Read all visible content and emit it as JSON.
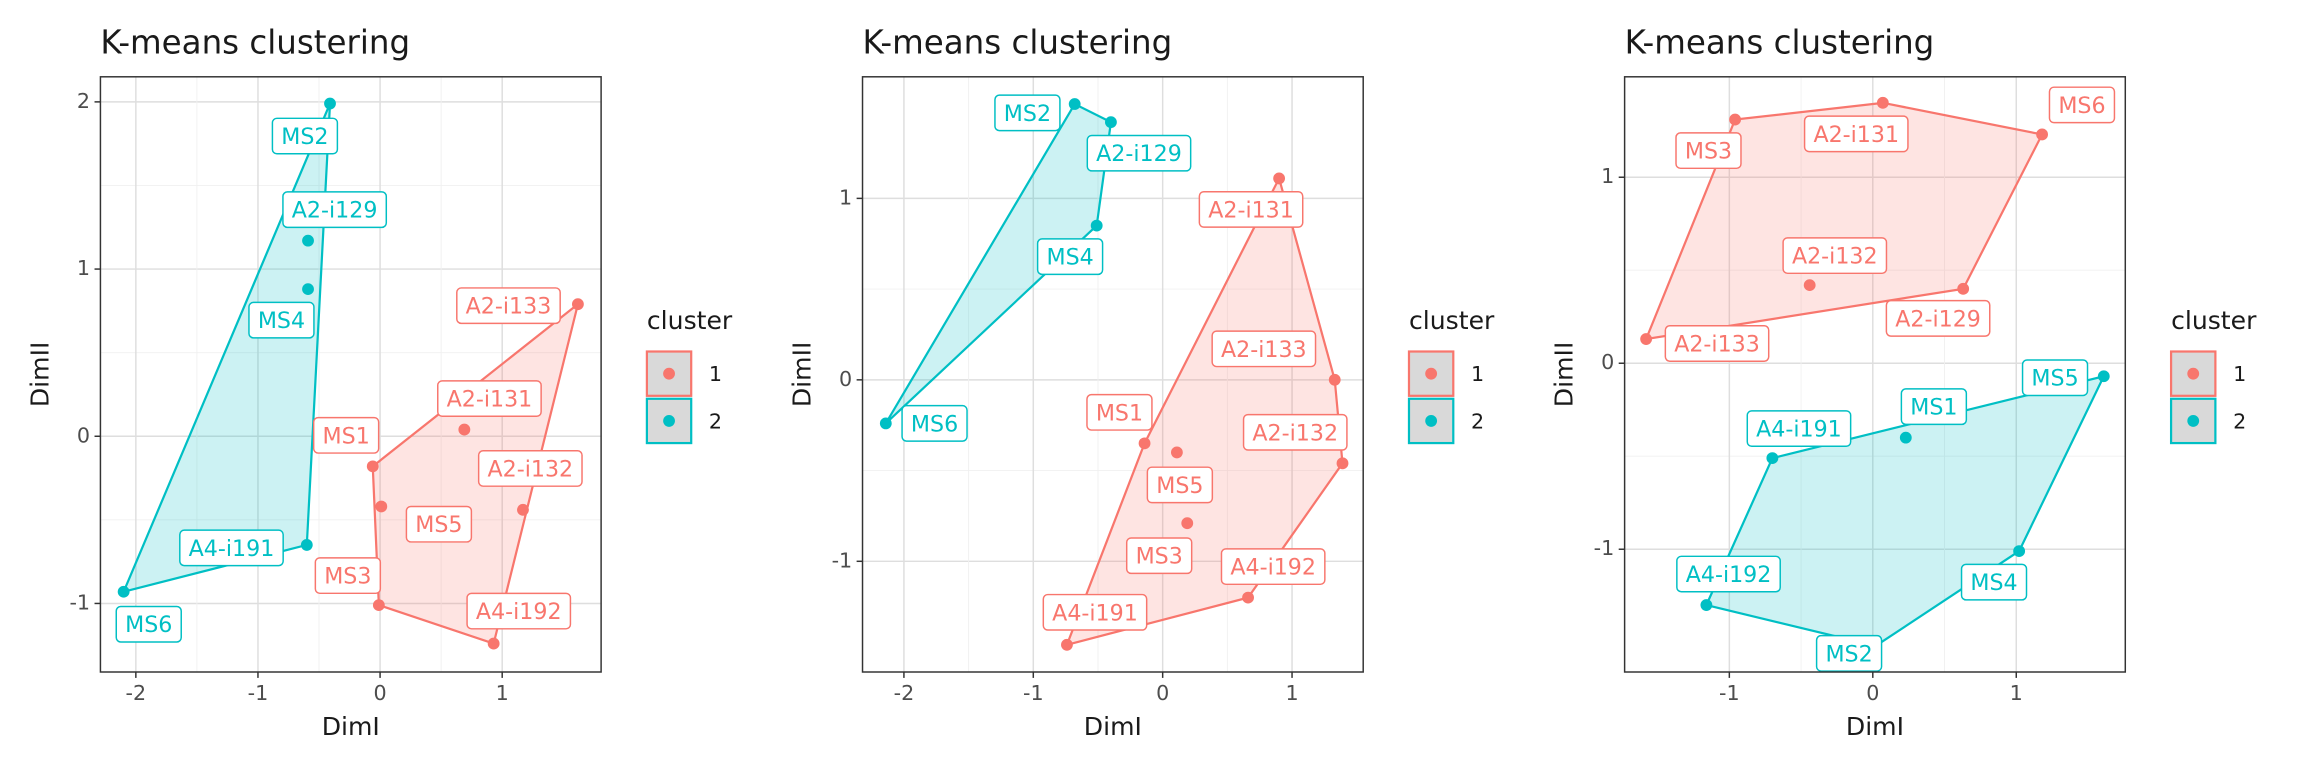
{
  "chart_data": [
    {
      "type": "scatter",
      "title": "K-means clustering",
      "xlabel": "DimI",
      "ylabel": "DimII",
      "legend_title": "cluster",
      "grid": true,
      "xlim": [
        -2.29,
        1.81
      ],
      "ylim": [
        -1.41,
        2.15
      ],
      "xticks": [
        -2,
        -1,
        0,
        1
      ],
      "yticks": [
        -1,
        0,
        1,
        2
      ],
      "series": [
        {
          "name": "1",
          "color": "#F8766D",
          "labels": [
            "A2-i133",
            "A2-i131",
            "MS1",
            "MS5",
            "A2-i132",
            "MS3",
            "A4-i192"
          ],
          "x": [
            1.62,
            0.69,
            -0.06,
            0.01,
            1.17,
            -0.01,
            0.93
          ],
          "values": [
            0.79,
            0.04,
            -0.18,
            -0.42,
            -0.44,
            -1.01,
            -1.24
          ]
        },
        {
          "name": "2",
          "color": "#00BFC4",
          "labels": [
            "MS2",
            "A2-i129",
            "MS4",
            "A4-i191",
            "MS6"
          ],
          "x": [
            -0.41,
            -0.59,
            -0.59,
            -0.6,
            -2.1
          ],
          "values": [
            1.99,
            1.17,
            0.88,
            -0.65,
            -0.93
          ]
        }
      ]
    },
    {
      "type": "scatter",
      "title": "K-means clustering",
      "xlabel": "DimI",
      "ylabel": "DimII",
      "legend_title": "cluster",
      "grid": true,
      "xlim": [
        -2.32,
        1.55
      ],
      "ylim": [
        -1.61,
        1.67
      ],
      "xticks": [
        -2,
        -1,
        0,
        1
      ],
      "yticks": [
        -1,
        0,
        1
      ],
      "series": [
        {
          "name": "1",
          "color": "#F8766D",
          "labels": [
            "A2-i131",
            "A2-i133",
            "A2-i132",
            "A4-i192",
            "A4-i191",
            "MS1",
            "MS5",
            "MS3"
          ],
          "x": [
            0.9,
            1.33,
            1.39,
            0.66,
            -0.74,
            -0.14,
            0.11,
            0.19
          ],
          "values": [
            1.11,
            0.0,
            -0.46,
            -1.2,
            -1.46,
            -0.35,
            -0.4,
            -0.79
          ]
        },
        {
          "name": "2",
          "color": "#00BFC4",
          "labels": [
            "MS2",
            "A2-i129",
            "MS4",
            "MS6"
          ],
          "x": [
            -0.68,
            -0.4,
            -0.51,
            -2.14
          ],
          "values": [
            1.52,
            1.42,
            0.85,
            -0.24
          ]
        }
      ]
    },
    {
      "type": "scatter",
      "title": "K-means clustering",
      "xlabel": "DimI",
      "ylabel": "DimII",
      "legend_title": "cluster",
      "grid": true,
      "xlim": [
        -1.73,
        1.76
      ],
      "ylim": [
        -1.66,
        1.54
      ],
      "xticks": [
        -1,
        0,
        1
      ],
      "yticks": [
        -1,
        0,
        1
      ],
      "series": [
        {
          "name": "1",
          "color": "#F8766D",
          "labels": [
            "MS3",
            "A2-i131",
            "MS6",
            "A2-i129",
            "A2-i132",
            "A2-i133"
          ],
          "x": [
            -0.96,
            0.07,
            1.18,
            0.63,
            -0.44,
            -1.58
          ],
          "values": [
            1.31,
            1.4,
            1.23,
            0.4,
            0.42,
            0.13
          ]
        },
        {
          "name": "2",
          "color": "#00BFC4",
          "labels": [
            "MS5",
            "MS1",
            "A4-i191",
            "MS4",
            "A4-i192",
            "MS2"
          ],
          "x": [
            1.61,
            0.23,
            -0.7,
            1.02,
            -1.16,
            0.02
          ],
          "values": [
            -0.07,
            -0.4,
            -0.51,
            -1.01,
            -1.3,
            -1.52
          ]
        }
      ]
    }
  ]
}
